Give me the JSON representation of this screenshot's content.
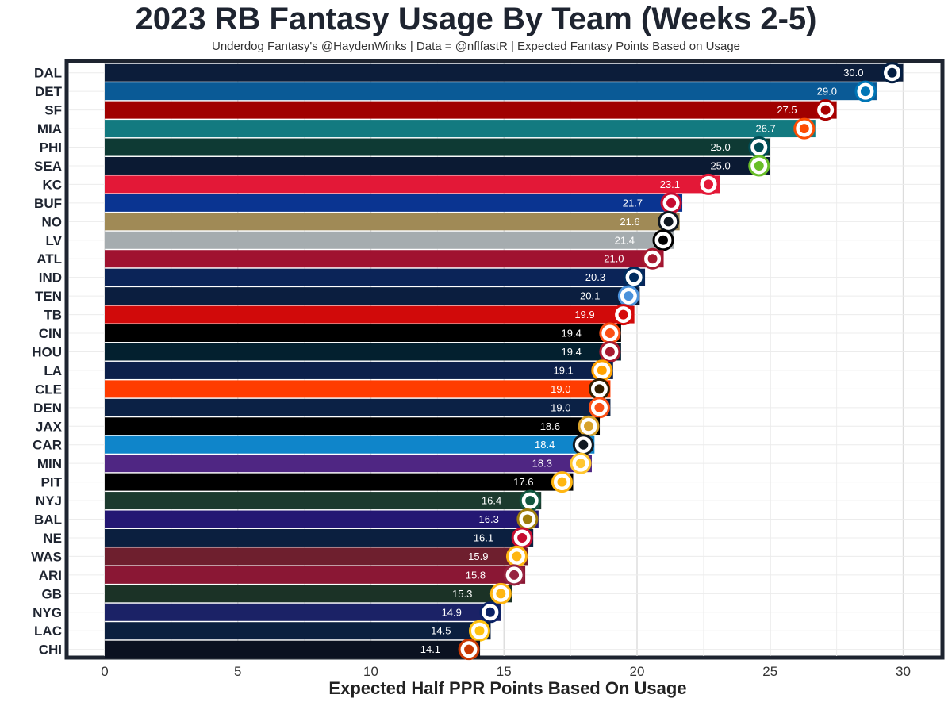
{
  "chart_data": {
    "type": "bar",
    "orientation": "horizontal",
    "title": "2023 RB Fantasy Usage By Team (Weeks 2-5)",
    "subtitle": "Underdog Fantasy's @HaydenWinks | Data = @nflfastR | Expected Fantasy Points Based on Usage",
    "xlabel": "Expected Half PPR Points Based On Usage",
    "ylabel": "",
    "xlim": [
      0,
      31.5
    ],
    "x_ticks": [
      0,
      5,
      10,
      15,
      20,
      25,
      30
    ],
    "grid": true,
    "bars": [
      {
        "team": "DAL",
        "value": 30.0,
        "label": "30.0",
        "color": "#0c1d3a",
        "text_color": "#ffffff",
        "accent": "#041e42"
      },
      {
        "team": "DET",
        "value": 29.0,
        "label": "29.0",
        "color": "#0a5a96",
        "text_color": "#ffffff",
        "accent": "#0076b6"
      },
      {
        "team": "SF",
        "value": 27.5,
        "label": "27.5",
        "color": "#a00000",
        "text_color": "#ffffff",
        "accent": "#aa0000"
      },
      {
        "team": "MIA",
        "value": 26.7,
        "label": "26.7",
        "color": "#137a80",
        "text_color": "#ffffff",
        "accent": "#fc4c02"
      },
      {
        "team": "PHI",
        "value": 25.0,
        "label": "25.0",
        "color": "#0e3a34",
        "text_color": "#ffffff",
        "accent": "#004c54"
      },
      {
        "team": "SEA",
        "value": 25.0,
        "label": "25.0",
        "color": "#0b1a33",
        "text_color": "#ffffff",
        "accent": "#69be28"
      },
      {
        "team": "KC",
        "value": 23.1,
        "label": "23.1",
        "color": "#e31837",
        "text_color": "#ffffff",
        "accent": "#e31837"
      },
      {
        "team": "BUF",
        "value": 21.7,
        "label": "21.7",
        "color": "#0a3491",
        "text_color": "#ffffff",
        "accent": "#c60c30"
      },
      {
        "team": "NO",
        "value": 21.6,
        "label": "21.6",
        "color": "#a08a56",
        "text_color": "#ffffff",
        "accent": "#101820"
      },
      {
        "team": "LV",
        "value": 21.4,
        "label": "21.4",
        "color": "#a5acaf",
        "text_color": "#ffffff",
        "accent": "#000000"
      },
      {
        "team": "ATL",
        "value": 21.0,
        "label": "21.0",
        "color": "#a01230",
        "text_color": "#ffffff",
        "accent": "#a71930"
      },
      {
        "team": "IND",
        "value": 20.3,
        "label": "20.3",
        "color": "#0b2458",
        "text_color": "#ffffff",
        "accent": "#002c5f"
      },
      {
        "team": "TEN",
        "value": 20.1,
        "label": "20.1",
        "color": "#0b1e3f",
        "text_color": "#ffffff",
        "accent": "#4b92db"
      },
      {
        "team": "TB",
        "value": 19.9,
        "label": "19.9",
        "color": "#d10a0a",
        "text_color": "#ffffff",
        "accent": "#d50a0a"
      },
      {
        "team": "CIN",
        "value": 19.4,
        "label": "19.4",
        "color": "#000000",
        "text_color": "#ffffff",
        "accent": "#fb4f14"
      },
      {
        "team": "HOU",
        "value": 19.4,
        "label": "19.4",
        "color": "#03202f",
        "text_color": "#ffffff",
        "accent": "#a71930"
      },
      {
        "team": "LA",
        "value": 19.1,
        "label": "19.1",
        "color": "#0c1f4a",
        "text_color": "#ffffff",
        "accent": "#ffa300"
      },
      {
        "team": "CLE",
        "value": 19.0,
        "label": "19.0",
        "color": "#ff3c00",
        "text_color": "#ffffff",
        "accent": "#311d00"
      },
      {
        "team": "DEN",
        "value": 19.0,
        "label": "19.0",
        "color": "#0b2145",
        "text_color": "#ffffff",
        "accent": "#fb4f14"
      },
      {
        "team": "JAX",
        "value": 18.6,
        "label": "18.6",
        "color": "#000000",
        "text_color": "#ffffff",
        "accent": "#d7a22a"
      },
      {
        "team": "CAR",
        "value": 18.4,
        "label": "18.4",
        "color": "#0f85ca",
        "text_color": "#ffffff",
        "accent": "#101820"
      },
      {
        "team": "MIN",
        "value": 18.3,
        "label": "18.3",
        "color": "#4f2683",
        "text_color": "#ffffff",
        "accent": "#ffc62f"
      },
      {
        "team": "PIT",
        "value": 17.6,
        "label": "17.6",
        "color": "#000000",
        "text_color": "#ffffff",
        "accent": "#ffb612"
      },
      {
        "team": "NYJ",
        "value": 16.4,
        "label": "16.4",
        "color": "#1c3a2e",
        "text_color": "#ffffff",
        "accent": "#125740"
      },
      {
        "team": "BAL",
        "value": 16.3,
        "label": "16.3",
        "color": "#241773",
        "text_color": "#ffffff",
        "accent": "#9e7c0c"
      },
      {
        "team": "NE",
        "value": 16.1,
        "label": "16.1",
        "color": "#0b1f3f",
        "text_color": "#ffffff",
        "accent": "#c60c30"
      },
      {
        "team": "WAS",
        "value": 15.9,
        "label": "15.9",
        "color": "#6e1f2e",
        "text_color": "#ffffff",
        "accent": "#ffb612"
      },
      {
        "team": "ARI",
        "value": 15.8,
        "label": "15.8",
        "color": "#8a1734",
        "text_color": "#ffffff",
        "accent": "#97233f"
      },
      {
        "team": "GB",
        "value": 15.3,
        "label": "15.3",
        "color": "#1b3226",
        "text_color": "#ffffff",
        "accent": "#ffb612"
      },
      {
        "team": "NYG",
        "value": 14.9,
        "label": "14.9",
        "color": "#1b2266",
        "text_color": "#ffffff",
        "accent": "#0b2265"
      },
      {
        "team": "LAC",
        "value": 14.5,
        "label": "14.5",
        "color": "#0b1f3f",
        "text_color": "#ffffff",
        "accent": "#ffc20e"
      },
      {
        "team": "CHI",
        "value": 14.1,
        "label": "14.1",
        "color": "#0b1120",
        "text_color": "#ffffff",
        "accent": "#c83803"
      }
    ]
  }
}
